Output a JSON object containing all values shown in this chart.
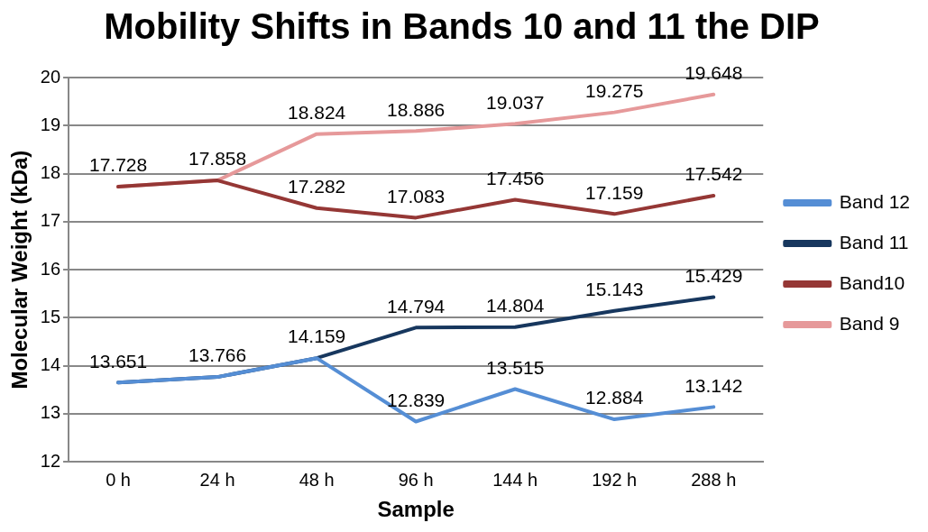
{
  "chart_data": {
    "type": "line",
    "title": "Mobility Shifts in Bands 10 and 11 the DIP",
    "xlabel": "Sample",
    "ylabel": "Molecular Weight (kDa)",
    "categories": [
      "0 h",
      "24 h",
      "48 h",
      "96 h",
      "144 h",
      "192 h",
      "288 h"
    ],
    "ylim": [
      12,
      20
    ],
    "yticks": [
      12,
      13,
      14,
      15,
      16,
      17,
      18,
      19,
      20
    ],
    "grid": "y",
    "legend": "right",
    "marker": "none",
    "line_style": "solid",
    "series": [
      {
        "name": "Band 9",
        "color": "#e6999a",
        "values": [
          17.728,
          17.858,
          18.824,
          18.886,
          19.037,
          19.275,
          19.648
        ],
        "value_labels": [
          null,
          null,
          "18.824",
          "18.886",
          "19.037",
          "19.275",
          "19.648"
        ]
      },
      {
        "name": "Band10",
        "color": "#953735",
        "values": [
          17.728,
          17.858,
          17.282,
          17.083,
          17.456,
          17.159,
          17.542
        ],
        "value_labels": [
          "17.728",
          "17.858",
          "17.282",
          "17.083",
          "17.456",
          "17.159",
          "17.542"
        ]
      },
      {
        "name": "Band 11",
        "color": "#17375e",
        "values": [
          13.651,
          13.766,
          14.159,
          14.794,
          14.804,
          15.143,
          15.429
        ],
        "value_labels": [
          null,
          null,
          null,
          "14.794",
          "14.804",
          "15.143",
          "15.429"
        ]
      },
      {
        "name": "Band 12",
        "color": "#558ed5",
        "values": [
          13.651,
          13.766,
          14.159,
          12.839,
          13.515,
          12.884,
          13.142
        ],
        "value_labels": [
          "13.651",
          "13.766",
          "14.159",
          "12.839",
          "13.515",
          "12.884",
          "13.142"
        ]
      }
    ]
  }
}
